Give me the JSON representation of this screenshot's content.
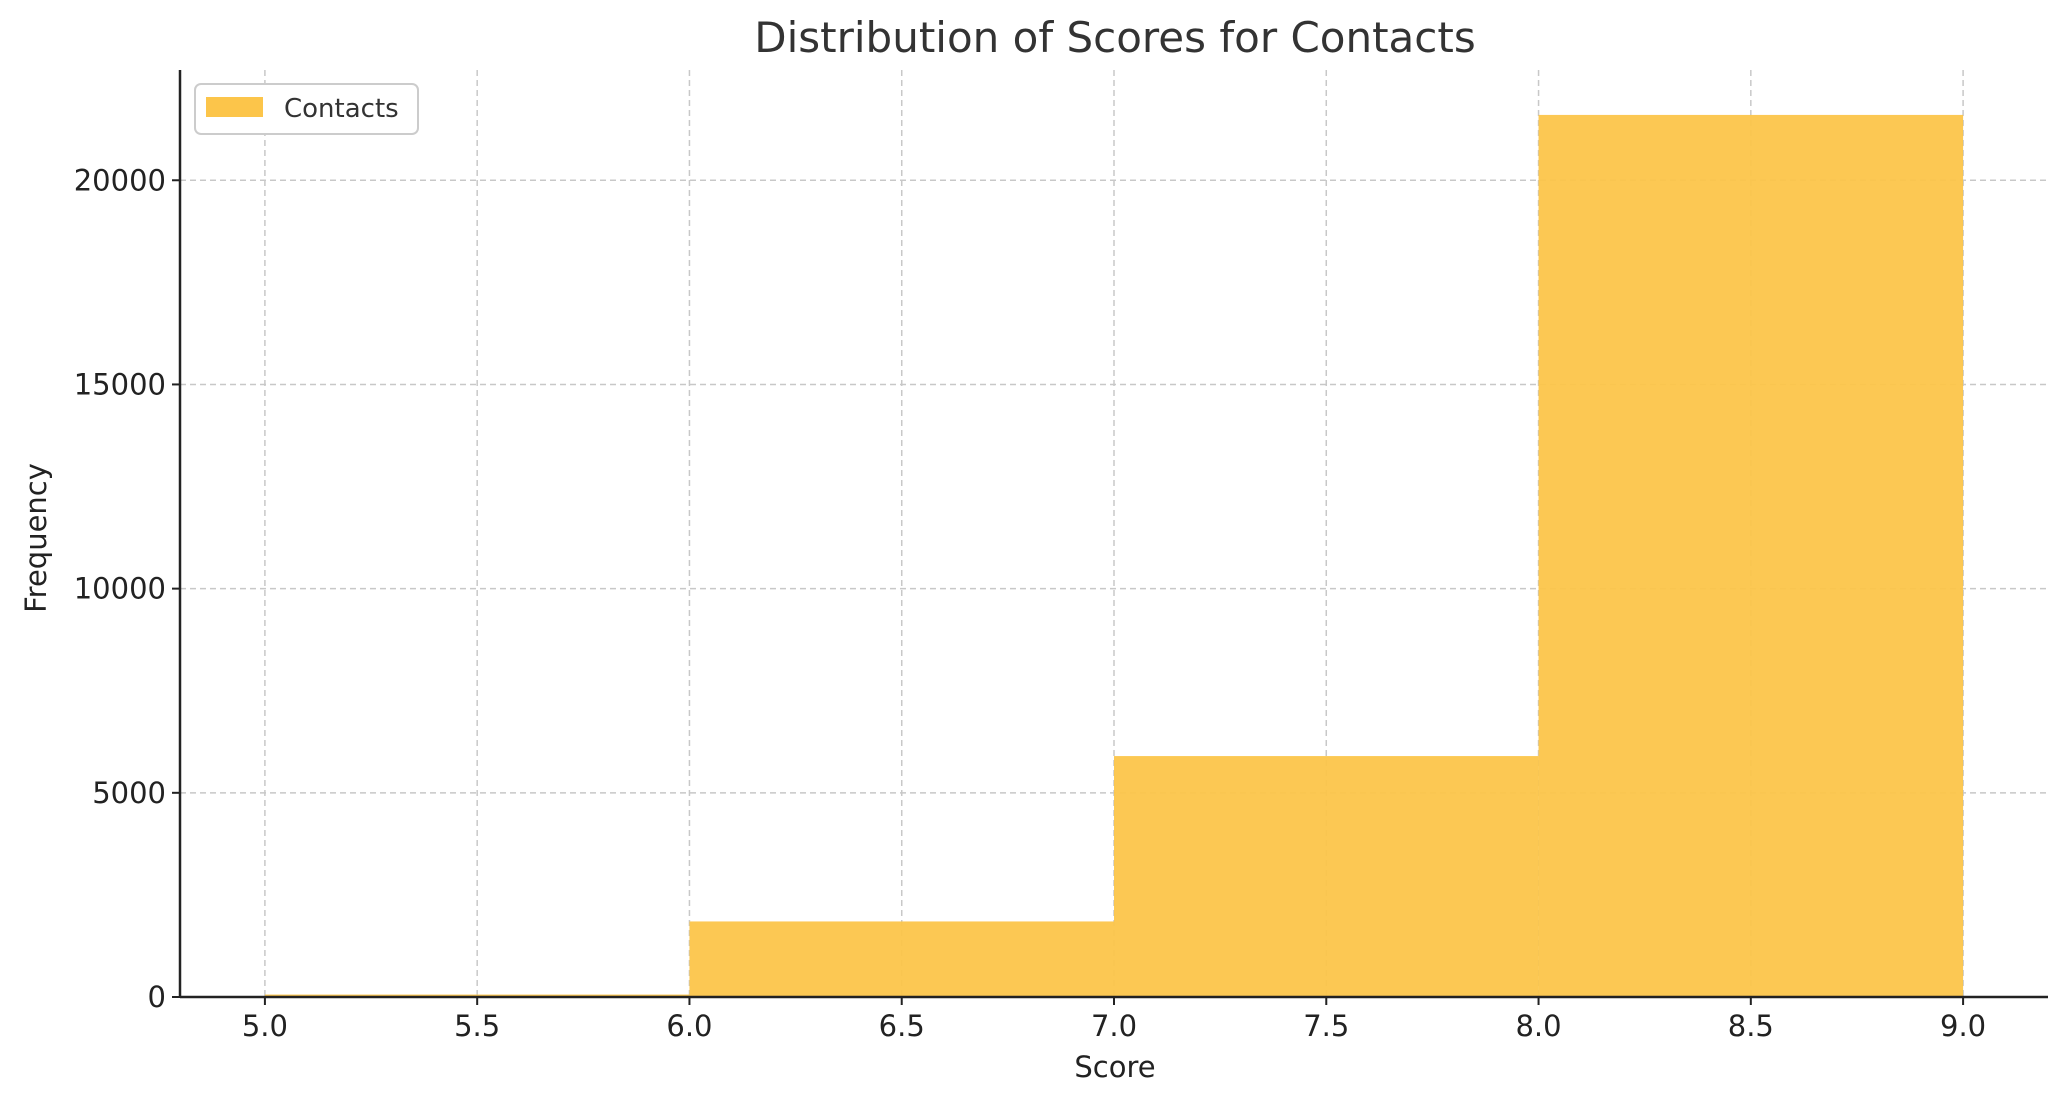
{
  "chart_data": {
    "type": "bar",
    "title": "Distribution of Scores for Contacts",
    "xlabel": "Score",
    "ylabel": "Frequency",
    "xlim": [
      4.8,
      9.2
    ],
    "ylim": [
      0,
      22700
    ],
    "xticks": [
      "5.0",
      "5.5",
      "6.0",
      "6.5",
      "7.0",
      "7.5",
      "8.0",
      "8.5",
      "9.0"
    ],
    "yticks": [
      "0",
      "5000",
      "10000",
      "15000",
      "20000"
    ],
    "grid": true,
    "legend_position": "top-left",
    "series": [
      {
        "name": "Contacts",
        "color": "#fcc54a",
        "bins": [
          {
            "x0": 5,
            "x1": 6,
            "value": 60
          },
          {
            "x0": 6,
            "x1": 7,
            "value": 1850
          },
          {
            "x0": 7,
            "x1": 8,
            "value": 5900
          },
          {
            "x0": 8,
            "x1": 9,
            "value": 21600
          }
        ]
      }
    ]
  }
}
